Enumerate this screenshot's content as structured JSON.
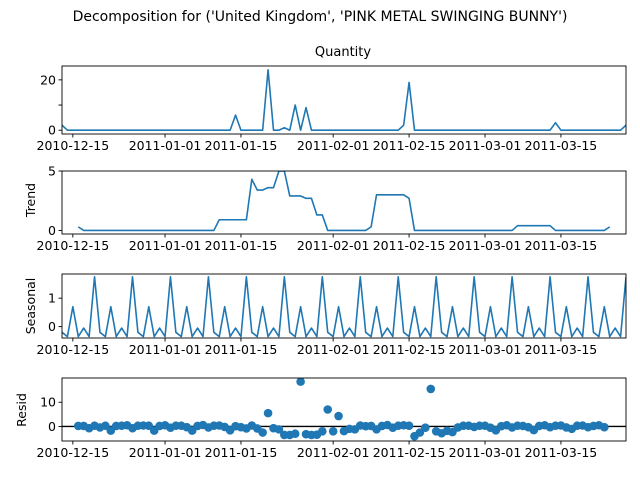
{
  "figure": {
    "title": "Decomposition for ('United Kingdom', 'PINK METAL SWINGING BUNNY')",
    "line_color": "#1f77b4"
  },
  "chart_data": [
    {
      "type": "line",
      "name": "observed",
      "title": "Quantity",
      "ylabel": "",
      "x_start": "2010-12-13",
      "x_end": "2011-03-27",
      "ylim": [
        -1.5,
        25.5
      ],
      "yticks": [
        0,
        10,
        20
      ],
      "ytick_labels": [
        "0",
        "",
        "20"
      ],
      "xtick_labels": [
        "2010-12-15",
        "2011-01-01",
        "2011-01-15",
        "2011-02-01",
        "2011-02-15",
        "2011-03-01",
        "2011-03-15"
      ],
      "xtick_dates": [
        "2010-12-15",
        "2011-01-01",
        "2011-01-15",
        "2011-02-01",
        "2011-02-15",
        "2011-03-01",
        "2011-03-15"
      ],
      "points": [
        [
          "2010-12-13",
          2
        ],
        [
          "2010-12-14",
          0
        ],
        [
          "2011-01-13",
          0
        ],
        [
          "2011-01-14",
          6
        ],
        [
          "2011-01-15",
          0
        ],
        [
          "2011-01-19",
          0
        ],
        [
          "2011-01-20",
          24
        ],
        [
          "2011-01-21",
          0
        ],
        [
          "2011-01-22",
          0
        ],
        [
          "2011-01-23",
          1
        ],
        [
          "2011-01-24",
          0
        ],
        [
          "2011-01-25",
          10
        ],
        [
          "2011-01-26",
          0
        ],
        [
          "2011-01-27",
          9
        ],
        [
          "2011-01-28",
          0
        ],
        [
          "2011-02-13",
          0
        ],
        [
          "2011-02-14",
          2
        ],
        [
          "2011-02-15",
          19
        ],
        [
          "2011-02-16",
          0
        ],
        [
          "2011-03-13",
          0
        ],
        [
          "2011-03-14",
          3
        ],
        [
          "2011-03-15",
          0
        ],
        [
          "2011-03-26",
          0
        ],
        [
          "2011-03-27",
          2
        ]
      ]
    },
    {
      "type": "line",
      "name": "trend",
      "title": "",
      "ylabel": "Trend",
      "x_start": "2010-12-13",
      "x_end": "2011-03-27",
      "ylim": [
        -0.3,
        5.0
      ],
      "yticks": [
        0,
        5
      ],
      "ytick_labels": [
        "0",
        "5"
      ],
      "xtick_labels": [
        "2010-12-15",
        "2011-01-01",
        "2011-01-15",
        "2011-02-01",
        "2011-02-15",
        "2011-03-01",
        "2011-03-15"
      ],
      "xtick_dates": [
        "2010-12-15",
        "2011-01-01",
        "2011-01-15",
        "2011-02-01",
        "2011-02-15",
        "2011-03-01",
        "2011-03-15"
      ],
      "points": [
        [
          "2010-12-16",
          0.3
        ],
        [
          "2010-12-17",
          0
        ],
        [
          "2011-01-10",
          0
        ],
        [
          "2011-01-11",
          0.9
        ],
        [
          "2011-01-16",
          0.9
        ],
        [
          "2011-01-17",
          4.3
        ],
        [
          "2011-01-18",
          3.4
        ],
        [
          "2011-01-19",
          3.4
        ],
        [
          "2011-01-20",
          3.6
        ],
        [
          "2011-01-21",
          3.6
        ],
        [
          "2011-01-22",
          5.0
        ],
        [
          "2011-01-23",
          5.0
        ],
        [
          "2011-01-24",
          2.9
        ],
        [
          "2011-01-26",
          2.9
        ],
        [
          "2011-01-27",
          2.7
        ],
        [
          "2011-01-28",
          2.7
        ],
        [
          "2011-01-29",
          1.3
        ],
        [
          "2011-01-30",
          1.3
        ],
        [
          "2011-01-31",
          0
        ],
        [
          "2011-02-07",
          0
        ],
        [
          "2011-02-08",
          0.3
        ],
        [
          "2011-02-09",
          3.0
        ],
        [
          "2011-02-14",
          3.0
        ],
        [
          "2011-02-15",
          2.7
        ],
        [
          "2011-02-16",
          0
        ],
        [
          "2011-03-06",
          0
        ],
        [
          "2011-03-07",
          0.4
        ],
        [
          "2011-03-13",
          0.4
        ],
        [
          "2011-03-14",
          0
        ],
        [
          "2011-03-23",
          0
        ],
        [
          "2011-03-24",
          0.3
        ]
      ]
    },
    {
      "type": "line",
      "name": "seasonal",
      "title": "",
      "ylabel": "Seasonal",
      "x_start": "2010-12-13",
      "x_end": "2011-03-27",
      "ylim": [
        -0.4,
        1.85
      ],
      "yticks": [
        0,
        1
      ],
      "ytick_labels": [
        "0",
        "1"
      ],
      "xtick_labels": [
        "2010-12-15",
        "2011-01-01",
        "2011-01-15",
        "2011-02-01",
        "2011-02-15",
        "2011-03-01",
        "2011-03-15"
      ],
      "xtick_dates": [
        "2010-12-15",
        "2011-01-01",
        "2011-01-15",
        "2011-02-01",
        "2011-02-15",
        "2011-03-01",
        "2011-03-15"
      ],
      "start_date": "2010-12-13",
      "n_points": 105,
      "weekly_pattern": [
        -0.2,
        -0.35,
        0.7,
        -0.35,
        -0.05,
        -0.35,
        1.75
      ]
    },
    {
      "type": "scatter",
      "name": "resid",
      "title": "",
      "ylabel": "Resid",
      "x_start": "2010-12-13",
      "x_end": "2011-03-27",
      "ylim": [
        -6,
        20
      ],
      "yticks": [
        0,
        10
      ],
      "ytick_labels": [
        "0",
        "10"
      ],
      "xtick_labels": [
        "2010-12-15",
        "2011-01-01",
        "2011-01-15",
        "2011-02-01",
        "2011-02-15",
        "2011-03-01",
        "2011-03-15"
      ],
      "xtick_dates": [
        "2010-12-15",
        "2011-01-01",
        "2011-01-15",
        "2011-02-01",
        "2011-02-15",
        "2011-03-01",
        "2011-03-15"
      ],
      "baseline": 0,
      "start_date": "2010-12-16",
      "values": [
        0.2,
        0.2,
        -0.7,
        0.3,
        -0.4,
        0.3,
        -1.7,
        0.2,
        0.3,
        0.5,
        -0.7,
        0.3,
        0.4,
        0.3,
        -1.7,
        0.2,
        0.5,
        -0.5,
        0.3,
        0.3,
        -0.3,
        -1.7,
        0.2,
        0.6,
        -0.4,
        0.3,
        0.4,
        -0.2,
        -1.6,
        0.1,
        -0.3,
        -0.8,
        0.4,
        -0.8,
        -2.5,
        5.5,
        -0.7,
        -1.2,
        -3.5,
        -3.5,
        -3.0,
        18.5,
        -3.2,
        -3.5,
        -3.4,
        -2.0,
        7.0,
        -2.0,
        4.3,
        -1.9,
        -1.0,
        -1.2,
        0.4,
        0.1,
        0.2,
        -1.2,
        0.2,
        0.6,
        -0.5,
        0.3,
        0.5,
        0.3,
        -4.0,
        -2.5,
        -0.5,
        15.5,
        -2.0,
        -2.8,
        -1.8,
        -2.3,
        -0.4,
        0.3,
        0.3,
        -0.2,
        0.3,
        0.3,
        -0.5,
        -1.6,
        0.1,
        0.5,
        -0.4,
        0.3,
        0.2,
        -0.3,
        -1.5,
        0.2,
        0.5,
        -0.3,
        0.3,
        0.4,
        -0.4,
        -1.0,
        0.3,
        0.4,
        -0.3,
        0.2,
        0.5,
        -0.3
      ]
    }
  ]
}
